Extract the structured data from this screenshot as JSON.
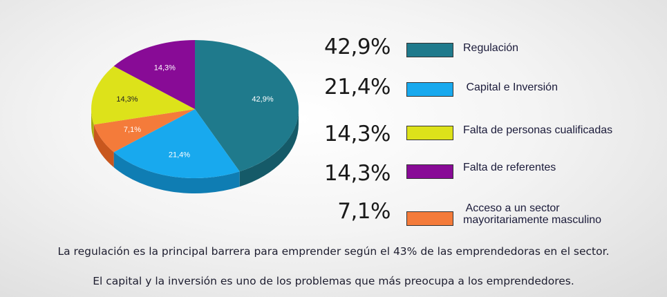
{
  "chart_data": {
    "type": "pie",
    "style": "3d",
    "slices": [
      {
        "label": "Regulación",
        "value": 42.9,
        "percent_label": "42,9%",
        "slice_label": "42,9%",
        "color": "#1f7a8c",
        "side_color": "#155a68",
        "text_color": "#ffffff"
      },
      {
        "label": "Capital e Inversión",
        "value": 21.4,
        "percent_label": "21,4%",
        "slice_label": "21,4%",
        "color": "#18a9ee",
        "side_color": "#0f7db3",
        "text_color": "#ffffff"
      },
      {
        "label": "Acceso a un sector mayoritariamente masculino",
        "value": 7.1,
        "percent_label": "7,1%",
        "slice_label": "7,1%",
        "color": "#f47b3a",
        "side_color": "#c8571e",
        "text_color": "#ffffff"
      },
      {
        "label": "Falta de personas cualificadas",
        "value": 14.3,
        "percent_label": "14,3%",
        "slice_label": "14,3%",
        "color": "#dde21a",
        "side_color": "#a9ad0e",
        "text_color": "#222222"
      },
      {
        "label": "Falta de referentes",
        "value": 14.3,
        "percent_label": "14,3%",
        "slice_label": "14,3%",
        "color": "#880b96",
        "side_color": "#5e0868",
        "text_color": "#ffffff"
      }
    ],
    "legend": [
      {
        "percent": "42,9%",
        "label_lines": [
          "Regulación"
        ],
        "color": "#1f7a8c"
      },
      {
        "percent": "21,4%",
        "label_lines": [
          " Capital e Inversión"
        ],
        "color": "#18a9ee"
      },
      {
        "percent": "14,3%",
        "label_lines": [
          "Falta de personas cualificadas"
        ],
        "color": "#dde21a"
      },
      {
        "percent": "14,3%",
        "label_lines": [
          "Falta de referentes"
        ],
        "color": "#880b96"
      },
      {
        "percent": "7,1%",
        "label_lines": [
          " Acceso a un sector",
          "mayoritariamente masculino"
        ],
        "color": "#f47b3a"
      }
    ],
    "legend_placement": "right"
  },
  "captions": {
    "line1": "La regulación es la principal barrera para emprender según el 43% de las emprendedoras en el sector.",
    "line2": "El capital y la inversión es uno de los problemas que más preocupa a los emprendedores."
  }
}
